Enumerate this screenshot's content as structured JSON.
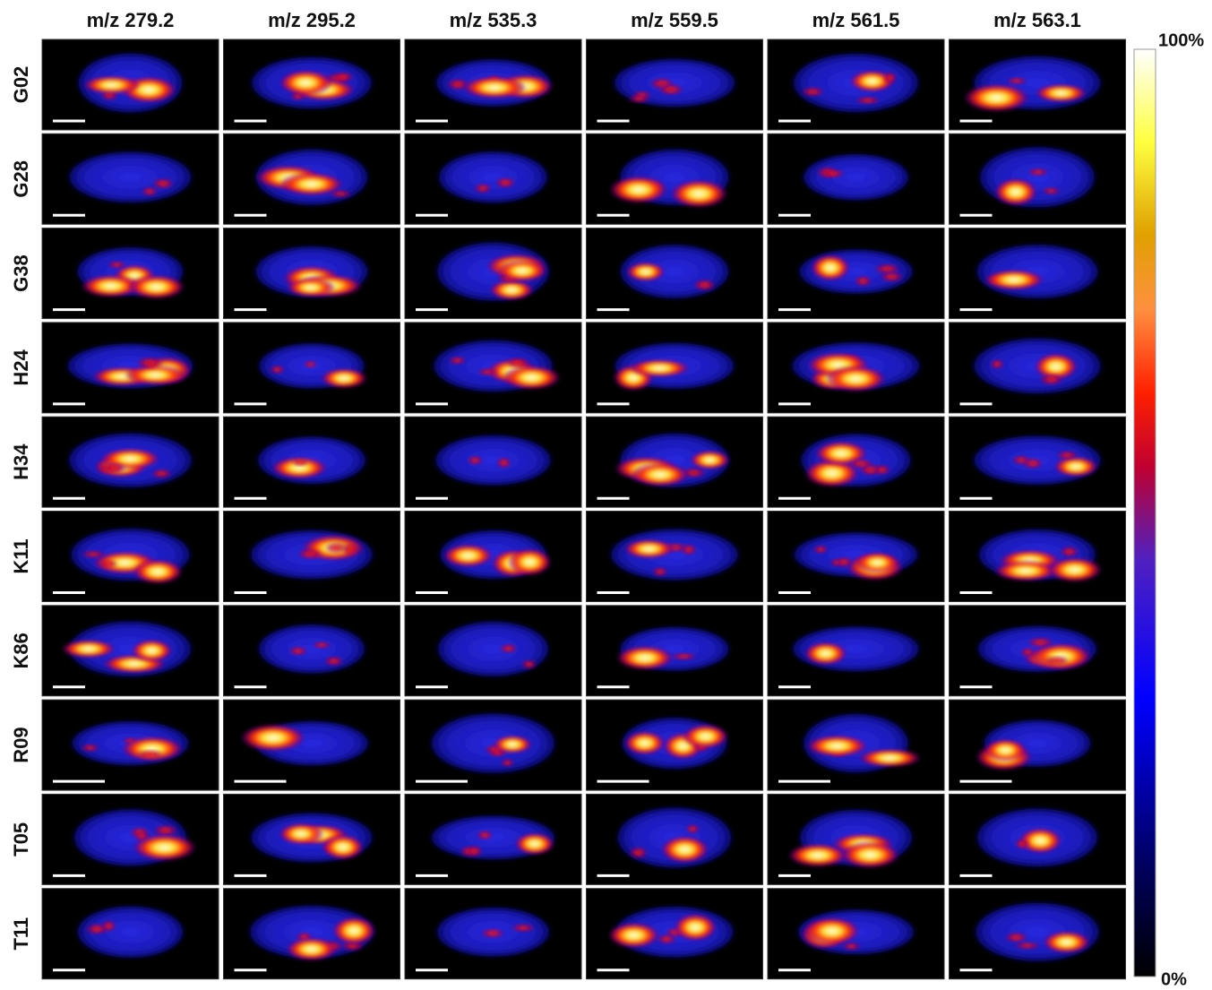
{
  "figure": {
    "columns": [
      "m/z 279.2",
      "m/z 295.2",
      "m/z 535.3",
      "m/z 559.5",
      "m/z 561.5",
      "m/z 563.1"
    ],
    "rows": [
      "G02",
      "G28",
      "G38",
      "H24",
      "H34",
      "K11",
      "K86",
      "R09",
      "T05",
      "T11"
    ],
    "colorbar": {
      "max_label": "100%",
      "min_label": "0%"
    }
  }
}
